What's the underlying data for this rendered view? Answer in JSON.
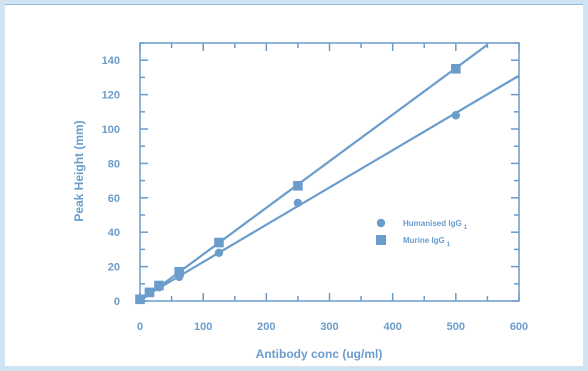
{
  "colors": {
    "accent": "#6a9ccc",
    "frame": "#cfe3f3"
  },
  "chart_data": {
    "type": "scatter",
    "title": "",
    "xlabel": "Antibody conc (ug/ml)",
    "ylabel": "Peak Height (mm)",
    "xlim": [
      0,
      600
    ],
    "ylim": [
      0,
      150
    ],
    "x_ticks": [
      0,
      100,
      200,
      300,
      400,
      500,
      600
    ],
    "y_ticks": [
      0,
      20,
      40,
      60,
      80,
      100,
      120,
      140
    ],
    "x_tick_labels": [
      "0",
      "100",
      "200",
      "300",
      "400",
      "500",
      "600"
    ],
    "y_tick_labels": [
      "0",
      "20",
      "40",
      "60",
      "80",
      "100",
      "120",
      "140"
    ],
    "grid": false,
    "legend_position": "middle-right",
    "series": [
      {
        "name": "Humanised IgG",
        "name_subscript": "1",
        "marker": "circle",
        "x": [
          0,
          15,
          30,
          62,
          125,
          250,
          500
        ],
        "y": [
          1,
          5,
          8,
          14,
          28,
          57,
          108
        ],
        "fit_line": {
          "x": [
            0,
            600
          ],
          "y": [
            1,
            131
          ]
        }
      },
      {
        "name": "Murine IgG",
        "name_subscript": "1",
        "marker": "square",
        "x": [
          0,
          15,
          30,
          62,
          125,
          250,
          500
        ],
        "y": [
          1,
          5,
          9,
          17,
          34,
          67,
          135
        ],
        "fit_line": {
          "x": [
            0,
            550
          ],
          "y": [
            0,
            149
          ]
        }
      }
    ]
  }
}
